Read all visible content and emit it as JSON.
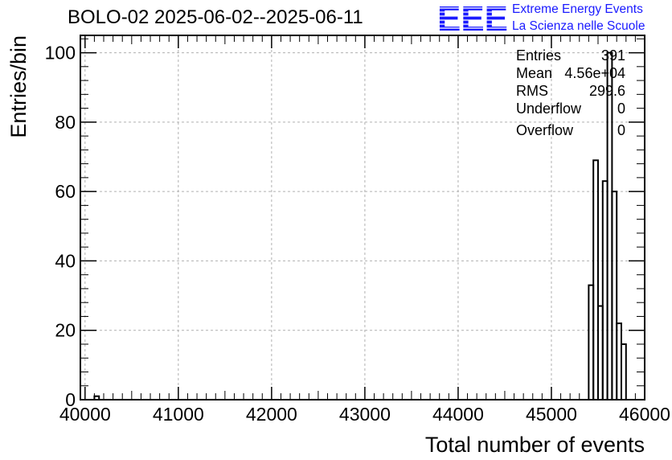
{
  "header": {
    "title": "BOLO-02 2025-06-02--2025-06-11",
    "logo_letters": "EEE",
    "logo_line1": "Extreme Energy Events",
    "logo_line2": "La Scienza nelle Scuole",
    "logo_color": "#1a1aff"
  },
  "stats": [
    {
      "label": "Entries",
      "value": "391"
    },
    {
      "label": "Mean",
      "value": "4.56e+04"
    },
    {
      "label": "RMS",
      "value": "299.6"
    },
    {
      "label": "Underflow",
      "value": "0"
    },
    {
      "label": "Overflow",
      "value": "0"
    }
  ],
  "chart_data": {
    "type": "histogram",
    "title": "BOLO-02 2025-06-02--2025-06-11",
    "xlabel": "Total number of events",
    "ylabel": "Entries/bin",
    "xlim": [
      39950,
      46000
    ],
    "ylim": [
      0,
      105
    ],
    "xticks": [
      40000,
      41000,
      42000,
      43000,
      44000,
      45000,
      46000
    ],
    "yticks": [
      0,
      20,
      40,
      60,
      80,
      100
    ],
    "grid": true,
    "bins": [
      {
        "x0": 40100,
        "x1": 40150,
        "count": 1
      },
      {
        "x0": 45350,
        "x1": 45400,
        "count": 0
      },
      {
        "x0": 45400,
        "x1": 45450,
        "count": 33
      },
      {
        "x0": 45450,
        "x1": 45500,
        "count": 69
      },
      {
        "x0": 45500,
        "x1": 45550,
        "count": 27
      },
      {
        "x0": 45550,
        "x1": 45600,
        "count": 63
      },
      {
        "x0": 45600,
        "x1": 45650,
        "count": 100
      },
      {
        "x0": 45650,
        "x1": 45700,
        "count": 60
      },
      {
        "x0": 45700,
        "x1": 45750,
        "count": 22
      },
      {
        "x0": 45750,
        "x1": 45800,
        "count": 16
      },
      {
        "x0": 45800,
        "x1": 45850,
        "count": 0
      }
    ]
  }
}
